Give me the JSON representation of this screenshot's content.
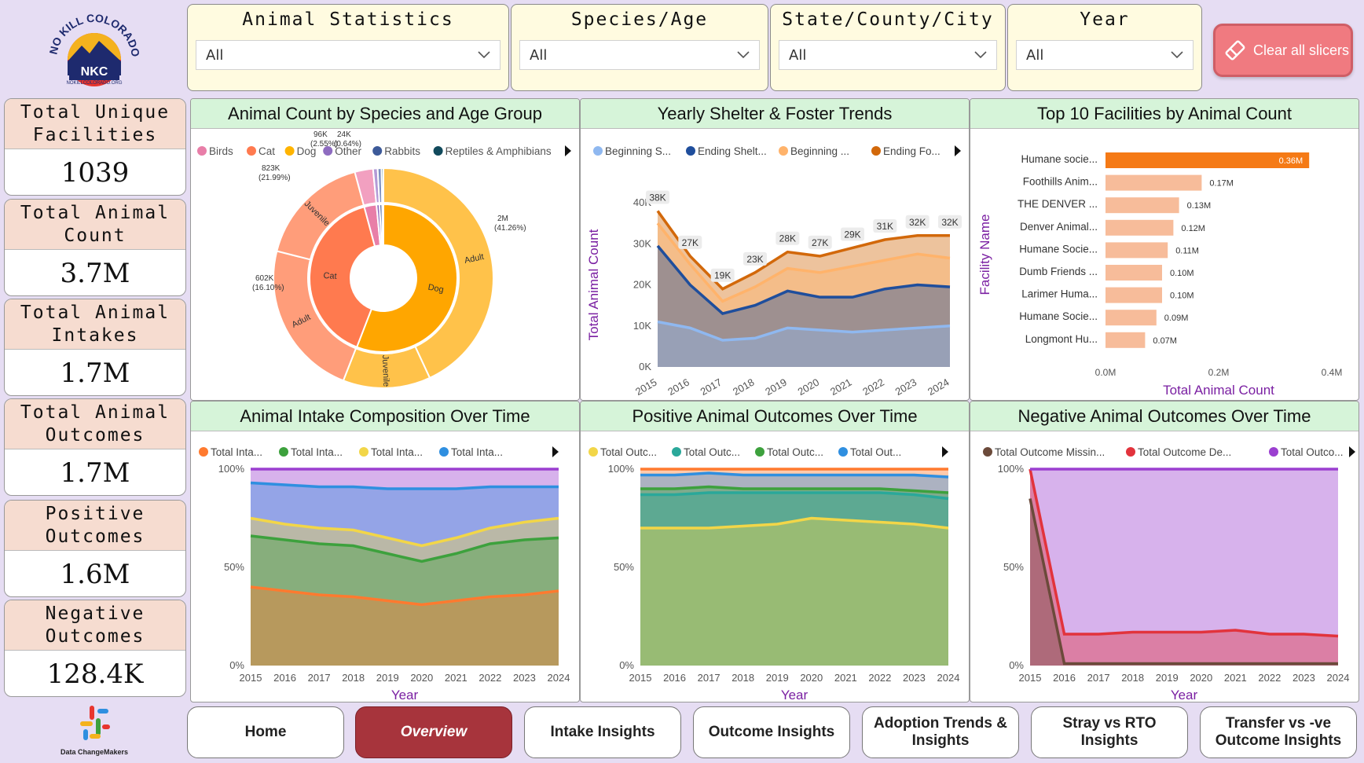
{
  "brand": {
    "logo_text": "NO KILL COLORADO",
    "logo_abbrev": "NKC",
    "logo_url_text": "NOKILLCOLORADO.ORG",
    "footer_logo_text": "Data ChangeMakers"
  },
  "slicers": [
    {
      "title": "Animal Statistics",
      "value": "All"
    },
    {
      "title": "Species/Age",
      "value": "All"
    },
    {
      "title": "State/County/City",
      "value": "All"
    },
    {
      "title": "Year",
      "value": "All"
    }
  ],
  "clear_button": {
    "label": "Clear all slicers",
    "icon": "eraser-icon"
  },
  "kpis": [
    {
      "title": "Total Unique Facilities",
      "value": "1039"
    },
    {
      "title": "Total Animal Count",
      "value": "3.7M"
    },
    {
      "title": "Total Animal Intakes",
      "value": "1.7M"
    },
    {
      "title": "Total Animal Outcomes",
      "value": "1.7M"
    },
    {
      "title": "Positive Outcomes",
      "value": "1.6M"
    },
    {
      "title": "Negative Outcomes",
      "value": "128.4K"
    }
  ],
  "nav": [
    {
      "label": "Home",
      "active": false
    },
    {
      "label": "Overview",
      "active": true
    },
    {
      "label": "Intake Insights",
      "active": false
    },
    {
      "label": "Outcome Insights",
      "active": false
    },
    {
      "label": "Adoption Trends & Insights",
      "active": false
    },
    {
      "label": "Stray vs RTO Insights",
      "active": false
    },
    {
      "label": "Transfer vs -ve Outcome Insights",
      "active": false
    }
  ],
  "panels": {
    "species": "Animal Count by Species and Age Group",
    "yearly": "Yearly Shelter & Foster Trends",
    "top10": "Top 10 Facilities by Animal Count",
    "intake": "Animal Intake Composition Over Time",
    "positive": "Positive Animal Outcomes Over Time",
    "negative": "Negative Animal Outcomes Over Time"
  },
  "colors": {
    "page_bg": "#e6ddf3",
    "kpi_header": "#f6dcd0",
    "panel_header": "#d6f4d9",
    "active_nav": "#a7343c",
    "clear_button": "#f07a80"
  },
  "chart_data": [
    {
      "id": "species",
      "type": "pie",
      "title": "Animal Count by Species and Age Group",
      "legend_position": "top",
      "legend": [
        "Birds",
        "Cat",
        "Dog",
        "Other",
        "Rabbits",
        "Reptiles & Amphibians"
      ],
      "legend_colors": [
        "#e87ea8",
        "#ff7a4f",
        "#ffb400",
        "#8e6cc0",
        "#3d5a99",
        "#114a5c"
      ],
      "inner": [
        {
          "label": "Dog",
          "value": 2.0,
          "color": "#ffa600"
        },
        {
          "label": "Cat",
          "value": 1.43,
          "color": "#ff7a4f"
        },
        {
          "label": "",
          "value": 0.096,
          "color": "#e87ea8"
        },
        {
          "label": "",
          "value": 0.024,
          "color": "#8e6cc0"
        },
        {
          "label": "",
          "value": 0.02,
          "color": "#3d5a99"
        },
        {
          "label": "",
          "value": 0.01,
          "color": "#114a5c"
        }
      ],
      "outer": [
        {
          "label": "Adult",
          "value": 1.54,
          "color": "#ffc24a",
          "annot": "2M",
          "annot2": "(41.26%)"
        },
        {
          "label": "Juvenile",
          "value": 0.46,
          "color": "#ffc24a"
        },
        {
          "label": "Adult",
          "value": 0.823,
          "color": "#ff9d7a",
          "annot": "823K",
          "annot2": "(21.99%)"
        },
        {
          "label": "Juvenile",
          "value": 0.602,
          "color": "#ff9d7a",
          "annot": "602K",
          "annot2": "(16.10%)"
        },
        {
          "label": "",
          "value": 0.096,
          "color": "#f2a0c0",
          "annot": "96K",
          "annot2": "(2.55%)"
        },
        {
          "label": "",
          "value": 0.024,
          "color": "#b39ad6",
          "annot": "24K",
          "annot2": "(0.64%)"
        },
        {
          "label": "",
          "value": 0.02,
          "color": "#7b8fc0"
        },
        {
          "label": "",
          "value": 0.01,
          "color": "#3e7c8c"
        }
      ]
    },
    {
      "id": "yearly",
      "type": "area",
      "title": "Yearly Shelter & Foster Trends",
      "xlabel": "Year",
      "ylabel": "Total Animal Count",
      "legend_position": "top",
      "x": [
        "2015",
        "2016",
        "2017",
        "2018",
        "2019",
        "2020",
        "2021",
        "2022",
        "2023",
        "2024"
      ],
      "ylim": [
        0,
        40000
      ],
      "yticks": [
        "0K",
        "10K",
        "20K",
        "30K",
        "40K"
      ],
      "series": [
        {
          "name": "Beginning S...",
          "color": "#8fb8f0",
          "values": [
            11000,
            9500,
            6500,
            7000,
            9500,
            9000,
            8500,
            9000,
            9500,
            10000
          ]
        },
        {
          "name": "Ending Shelt...",
          "color": "#1f4e9c",
          "values": [
            29500,
            20000,
            13000,
            15000,
            18500,
            17000,
            17000,
            19000,
            20000,
            19500
          ]
        },
        {
          "name": "Beginning ...",
          "color": "#ffb36b",
          "values": [
            35000,
            25000,
            16000,
            19500,
            24000,
            23000,
            24500,
            26000,
            27500,
            26500
          ]
        },
        {
          "name": "Ending Fo...",
          "color": "#d2680a",
          "values": [
            38000,
            27000,
            19000,
            23000,
            28000,
            27000,
            29000,
            31000,
            32000,
            32000
          ]
        }
      ],
      "data_labels": [
        "38K",
        "27K",
        "19K",
        "23K",
        "28K",
        "27K",
        "29K",
        "31K",
        "32K",
        "32K"
      ]
    },
    {
      "id": "top10",
      "type": "bar",
      "title": "Top 10 Facilities by Animal Count",
      "xlabel": "Total Animal Count",
      "ylabel": "Facility Name",
      "xlim": [
        0,
        0.4
      ],
      "xticks": [
        "0.0M",
        "0.2M",
        "0.4M"
      ],
      "categories": [
        "Humane socie...",
        "Foothills Anim...",
        "THE DENVER ...",
        "Denver Animal...",
        "Humane Socie...",
        "Dumb Friends ...",
        "Larimer Huma...",
        "Humane Socie...",
        "Longmont Hu..."
      ],
      "values": [
        0.36,
        0.17,
        0.13,
        0.12,
        0.11,
        0.1,
        0.1,
        0.09,
        0.07
      ],
      "value_labels": [
        "0.36M",
        "0.17M",
        "0.13M",
        "0.12M",
        "0.11M",
        "0.10M",
        "0.10M",
        "0.09M",
        "0.07M"
      ]
    },
    {
      "id": "intake",
      "type": "area",
      "title": "Animal Intake Composition Over Time",
      "xlabel": "Year",
      "legend_position": "top",
      "x": [
        "2015",
        "2016",
        "2017",
        "2018",
        "2019",
        "2020",
        "2021",
        "2022",
        "2023",
        "2024"
      ],
      "yticks": [
        "0%",
        "50%",
        "100%"
      ],
      "series": [
        {
          "name": "Total Inta...",
          "color": "#ff7a2f",
          "values": [
            40,
            38,
            36,
            35,
            33,
            31,
            33,
            35,
            36,
            38
          ]
        },
        {
          "name": "Total Inta...",
          "color": "#3da13d",
          "values": [
            66,
            64,
            62,
            61,
            57,
            53,
            57,
            62,
            64,
            65
          ]
        },
        {
          "name": "Total Inta...",
          "color": "#f2d648",
          "values": [
            75,
            72,
            70,
            69,
            65,
            61,
            65,
            70,
            73,
            75
          ]
        },
        {
          "name": "Total Inta...",
          "color": "#2f8fe0",
          "values": [
            93,
            92,
            91,
            91,
            90,
            90,
            90,
            91,
            91,
            91
          ]
        },
        {
          "name": "",
          "color": "#9b3fd0",
          "values": [
            100,
            100,
            100,
            100,
            100,
            100,
            100,
            100,
            100,
            100
          ]
        }
      ]
    },
    {
      "id": "positive",
      "type": "area",
      "title": "Positive Animal Outcomes Over Time",
      "xlabel": "Year",
      "legend_position": "top",
      "x": [
        "2015",
        "2016",
        "2017",
        "2018",
        "2019",
        "2020",
        "2021",
        "2022",
        "2023",
        "2024"
      ],
      "yticks": [
        "0%",
        "50%",
        "100%"
      ],
      "series": [
        {
          "name": "Total Outc...",
          "color": "#f2d648",
          "values": [
            70,
            70,
            70,
            71,
            72,
            75,
            74,
            73,
            72,
            70
          ]
        },
        {
          "name": "Total Outc...",
          "color": "#2aa89a",
          "values": [
            87,
            87,
            88,
            88,
            88,
            88,
            88,
            88,
            87,
            85
          ]
        },
        {
          "name": "Total Outc...",
          "color": "#3da13d",
          "values": [
            90,
            90,
            91,
            90,
            90,
            90,
            90,
            90,
            89,
            88
          ]
        },
        {
          "name": "Total Out...",
          "color": "#2f8fe0",
          "values": [
            97,
            97,
            98,
            97,
            97,
            97,
            97,
            97,
            97,
            96
          ]
        },
        {
          "name": "",
          "color": "#ff7a2f",
          "values": [
            100,
            100,
            100,
            100,
            100,
            100,
            100,
            100,
            100,
            100
          ]
        }
      ]
    },
    {
      "id": "negative",
      "type": "area",
      "title": "Negative Animal Outcomes Over Time",
      "xlabel": "Year",
      "legend_position": "top",
      "x": [
        "2015",
        "2016",
        "2017",
        "2018",
        "2019",
        "2020",
        "2021",
        "2022",
        "2023",
        "2024"
      ],
      "yticks": [
        "0%",
        "50%",
        "100%"
      ],
      "series": [
        {
          "name": "Total Outcome Missin...",
          "color": "#6b4a3a",
          "values": [
            85,
            1,
            1,
            1,
            1,
            1,
            1,
            1,
            1,
            1
          ]
        },
        {
          "name": "Total Outcome De...",
          "color": "#e2333c",
          "values": [
            100,
            16,
            16,
            17,
            17,
            17,
            18,
            16,
            16,
            15
          ]
        },
        {
          "name": "Total Outco...",
          "color": "#9b3fd0",
          "values": [
            100,
            100,
            100,
            100,
            100,
            100,
            100,
            100,
            100,
            100
          ]
        }
      ]
    }
  ]
}
